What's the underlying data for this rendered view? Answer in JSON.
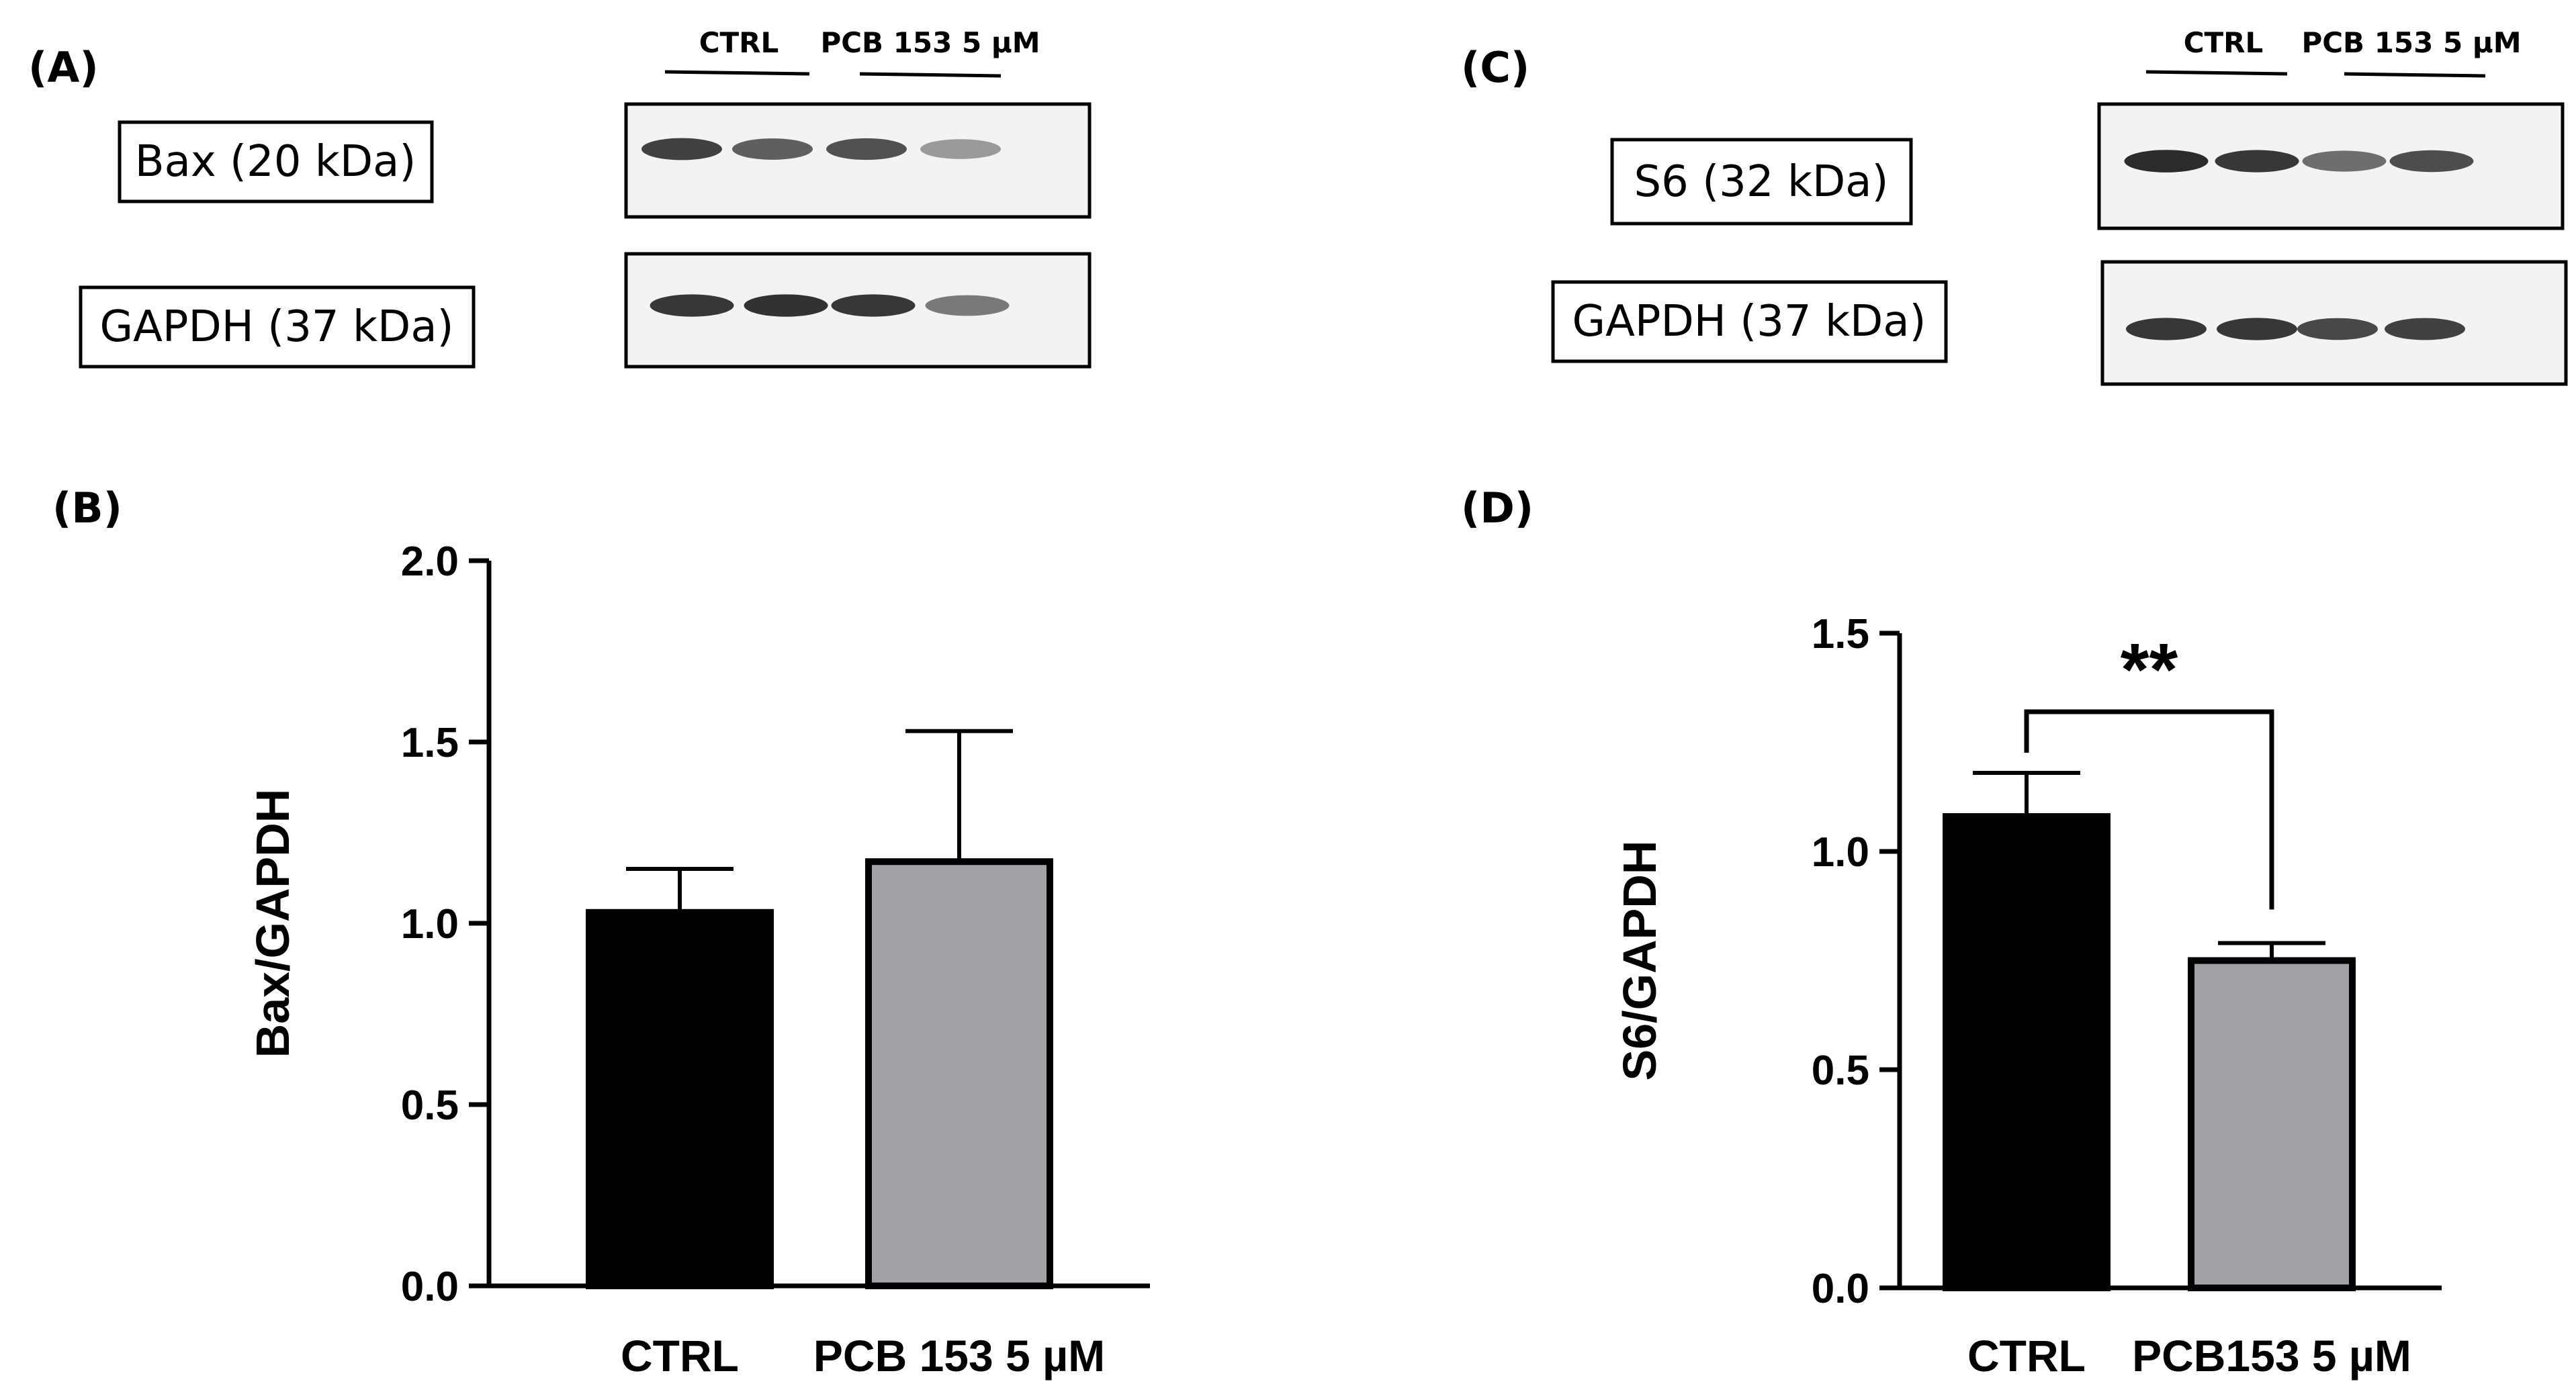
{
  "panels": {
    "A": {
      "letter": "(A)",
      "groups": [
        "CTRL",
        "PCB 153 5 µM"
      ],
      "blots": [
        {
          "label": "Bax (20 kDa)",
          "band_intensity": [
            0.85,
            0.72,
            0.78,
            0.45
          ]
        },
        {
          "label": "GAPDH (37 kDa)",
          "band_intensity": [
            0.9,
            0.92,
            0.9,
            0.6
          ]
        }
      ]
    },
    "C": {
      "letter": "(C)",
      "groups": [
        "CTRL",
        "PCB 153 5 µM"
      ],
      "blots": [
        {
          "label": "S6 (32 kDa)",
          "band_intensity": [
            0.95,
            0.9,
            0.65,
            0.8
          ]
        },
        {
          "label": "GAPDH (37 kDa)",
          "band_intensity": [
            0.9,
            0.9,
            0.82,
            0.85
          ]
        }
      ]
    },
    "B": {
      "letter": "(B)"
    },
    "D": {
      "letter": "(D)"
    }
  },
  "colors": {
    "ctrl_bar": "#000000",
    "treated_bar": "#a2a2a6",
    "axis": "#000000",
    "blot_bg": "#f3f3f3"
  },
  "chart_data": [
    {
      "type": "bar",
      "panel": "B",
      "categories": [
        "CTRL",
        "PCB 153 5 µM"
      ],
      "values": [
        1.03,
        1.17
      ],
      "errors": [
        0.12,
        0.36
      ],
      "ylabel": "Bax/GAPDH",
      "xlabel": "",
      "ylim": [
        0,
        2.0
      ],
      "yticks": [
        "0.0",
        "0.5",
        "1.0",
        "1.5",
        "2.0"
      ],
      "ytick_values": [
        0,
        0.5,
        1.0,
        1.5,
        2.0
      ],
      "significance": null,
      "grid": false
    },
    {
      "type": "bar",
      "panel": "D",
      "categories": [
        "CTRL",
        "PCB153 5 µM"
      ],
      "values": [
        1.08,
        0.75
      ],
      "errors": [
        0.1,
        0.04
      ],
      "ylabel": "S6/GAPDH",
      "xlabel": "",
      "ylim": [
        0,
        1.5
      ],
      "yticks": [
        "0.0",
        "0.5",
        "1.0",
        "1.5"
      ],
      "ytick_values": [
        0,
        0.5,
        1.0,
        1.5
      ],
      "significance": "**",
      "grid": false
    }
  ]
}
